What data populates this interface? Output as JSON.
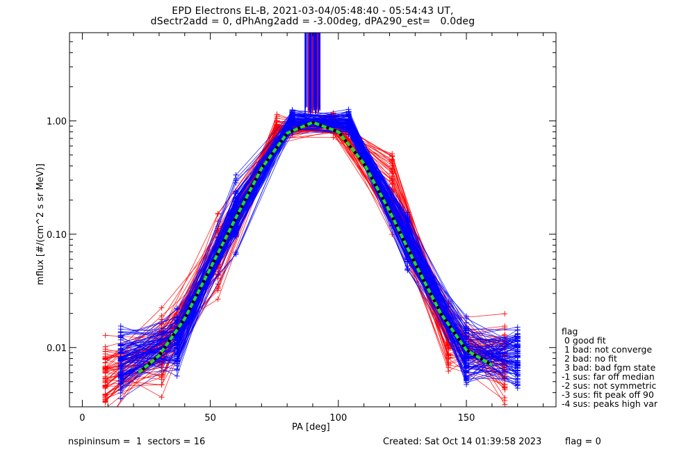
{
  "header": {
    "title_line1": "EPD Electrons EL-B, 2021-03-04/05:48:40 - 05:54:43 UT,",
    "title_line2": "dSectr2add = 0, dPhAng2add = -3.00deg, dPA290_est=   0.0deg"
  },
  "footer": {
    "left": "nspininsum =  1  sectors = 16",
    "created": "Created: Sat Oct 14 01:39:58 2023",
    "flag": "flag = 0"
  },
  "flag_legend": {
    "title": "flag",
    "items": [
      " 0 good fit",
      " 1 bad: not converge",
      " 2 bad: no fit",
      " 3 bad: bad fgm state",
      "-1 sus: far off median",
      "-2 sus: not symmetric",
      "-3 sus: fit peak off 90",
      "-4 sus: peaks high var"
    ]
  },
  "chart_data": {
    "type": "line",
    "title": "EPD Electrons EL-B, 2021-03-04/05:48:40 - 05:54:43 UT, dSectr2add = 0, dPhAng2add = -3.00deg, dPA290_est=   0.0deg",
    "xlabel": "PA [deg]",
    "ylabel": "mflux [#/(cm^2 s sr MeV)]",
    "xlim": [
      -5,
      185
    ],
    "ylim": [
      0.003,
      6.0
    ],
    "yscale": "log",
    "x_ticks": [
      0,
      50,
      100,
      150
    ],
    "x_tick_labels": [
      "0",
      "50",
      "100",
      "150"
    ],
    "y_ticks": [
      0.01,
      0.1,
      1.0
    ],
    "y_tick_labels": [
      "0.01",
      "0.10",
      "1.00"
    ],
    "colors": {
      "red_series": "#ff0000",
      "blue_series": "#0000ff",
      "fit": "#22dd22",
      "axes": "#000000"
    },
    "series": [
      {
        "color": "#0000ff",
        "marker": "+",
        "x": [
          15,
          37,
          60,
          82,
          104,
          127,
          150,
          170
        ],
        "y_median": [
          0.0075,
          0.011,
          0.15,
          1.0,
          0.95,
          0.09,
          0.009,
          0.008
        ]
      },
      {
        "color": "#ff0000",
        "marker": "+",
        "x": [
          9,
          31,
          53,
          76,
          98,
          121,
          143,
          165
        ],
        "y_median": [
          0.0055,
          0.009,
          0.07,
          0.82,
          0.95,
          0.22,
          0.012,
          0.008
        ]
      },
      {
        "color": "#22dd22",
        "style": "dashed",
        "x": [
          22,
          30,
          40,
          50,
          60,
          70,
          80,
          90,
          100,
          110,
          120,
          130,
          140,
          150,
          160
        ],
        "y": [
          0.006,
          0.0085,
          0.018,
          0.05,
          0.14,
          0.38,
          0.78,
          0.97,
          0.8,
          0.42,
          0.16,
          0.055,
          0.02,
          0.0095,
          0.007
        ]
      }
    ]
  }
}
